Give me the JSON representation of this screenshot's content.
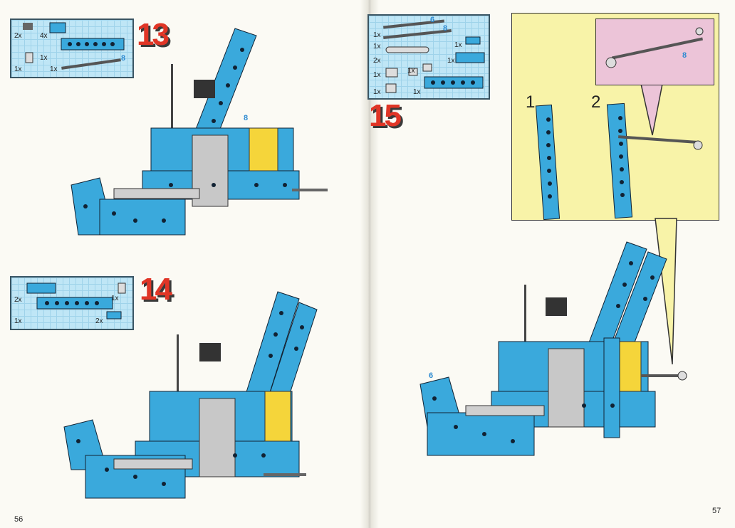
{
  "left_page": {
    "page_number": "56",
    "steps": [
      {
        "number": "13",
        "parts": [
          {
            "qty": "2x"
          },
          {
            "qty": "4x"
          },
          {
            "qty": "1x"
          },
          {
            "qty": "1x"
          },
          {
            "qty": "1x"
          }
        ],
        "length_label": "8"
      },
      {
        "number": "14",
        "parts": [
          {
            "qty": "2x"
          },
          {
            "qty": "1x"
          },
          {
            "qty": "1x"
          },
          {
            "qty": "2x"
          }
        ]
      }
    ],
    "model13_label": "8"
  },
  "right_page": {
    "page_number": "57",
    "step": {
      "number": "15",
      "parts": [
        {
          "qty": "1x"
        },
        {
          "qty": "1x"
        },
        {
          "qty": "2x"
        },
        {
          "qty": "1x"
        },
        {
          "qty": "1x"
        },
        {
          "qty": "1x"
        },
        {
          "qty": "1x"
        },
        {
          "qty": "1x"
        }
      ],
      "length_label_a": "6",
      "length_label_b": "8"
    },
    "callout": {
      "sub_step_1": "1",
      "sub_step_2": "2",
      "pink_label": "8"
    },
    "model_label": "6"
  },
  "colors": {
    "brick_blue": "#3aa9dc",
    "step_red": "#e03526",
    "grid_blue": "#bfe6f6",
    "callout_yellow": "#f8f3a8",
    "callout_pink": "#ecc4d8",
    "label_blue": "#2f8bd1"
  }
}
